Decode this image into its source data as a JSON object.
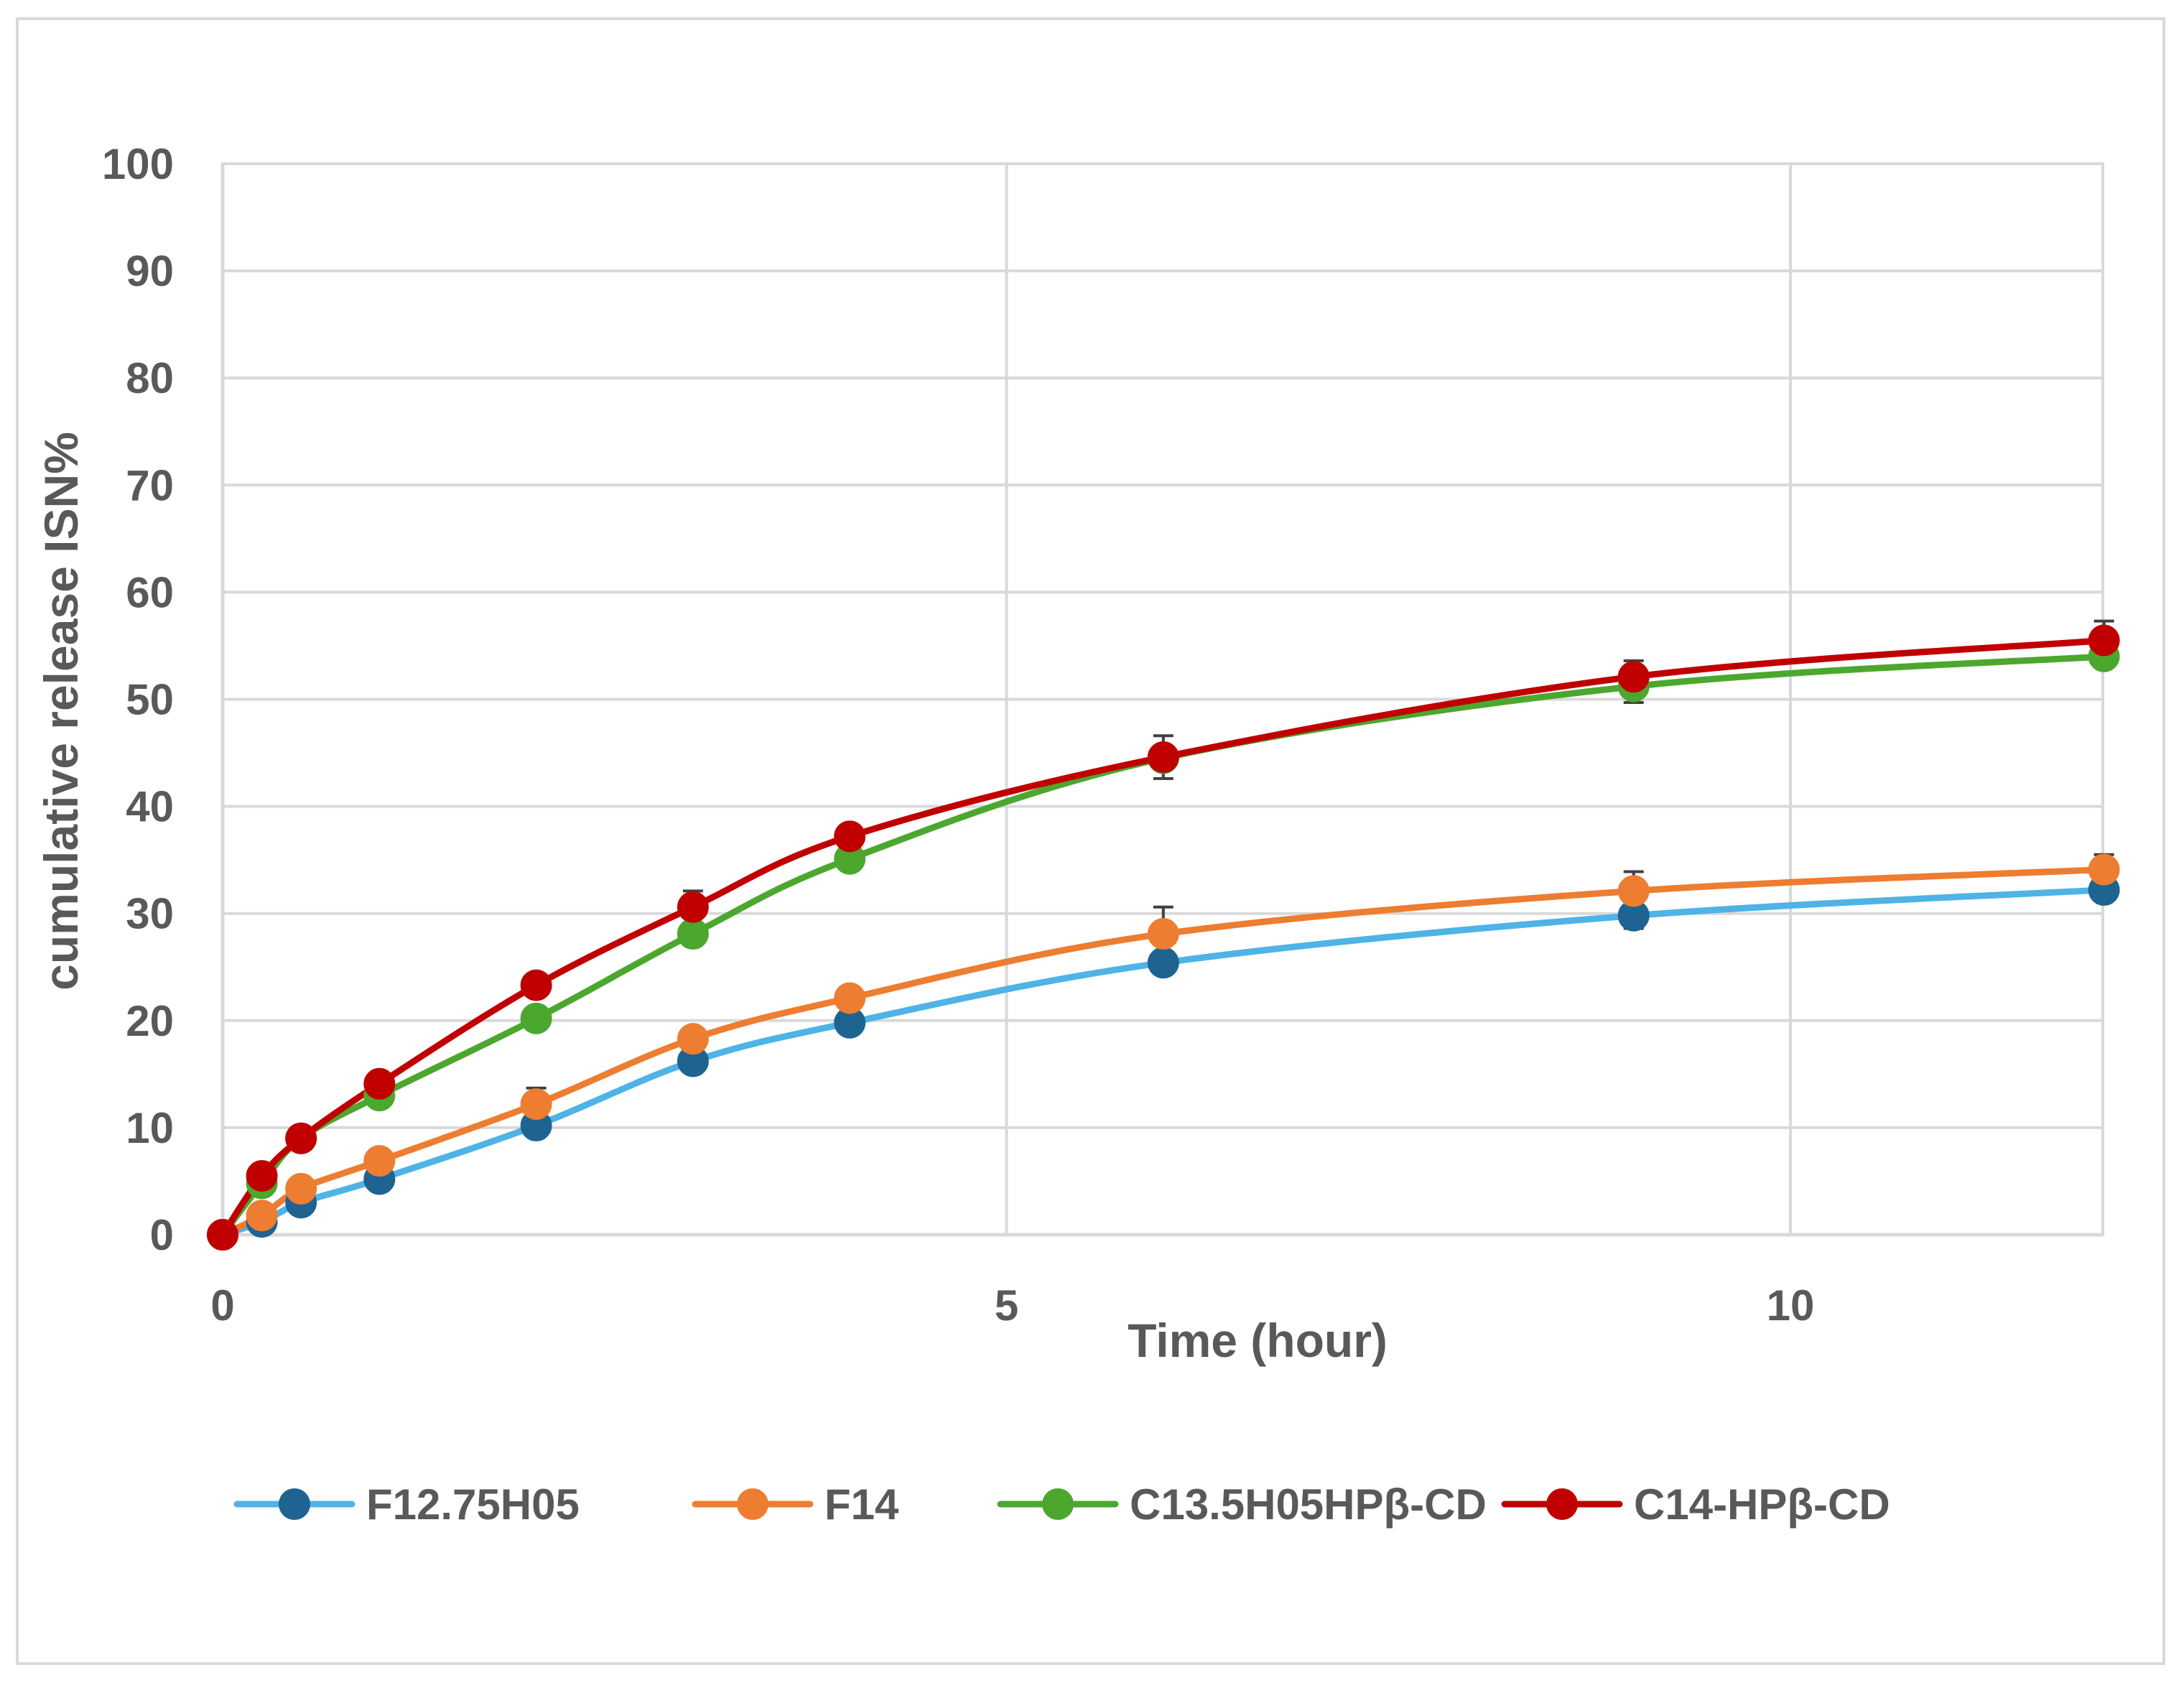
{
  "chart_data": {
    "type": "line",
    "title": "",
    "xlabel": "Time (hour)",
    "ylabel": "cumulative release ISN%",
    "xlim": [
      0,
      12
    ],
    "ylim": [
      0,
      100
    ],
    "xticks": [
      0,
      5,
      10
    ],
    "yticks": [
      0,
      10,
      20,
      30,
      40,
      50,
      60,
      70,
      80,
      90,
      100
    ],
    "grid": true,
    "legend_position": "bottom",
    "x": [
      0,
      0.25,
      0.5,
      1,
      2,
      3,
      4,
      6,
      9,
      12
    ],
    "series": [
      {
        "name": "F12.75H05",
        "line_color": "#4fb3e6",
        "marker_color": "#1f6391",
        "values": [
          0,
          1.2,
          3.0,
          5.2,
          10.2,
          16.2,
          19.8,
          25.4,
          29.8,
          32.2
        ],
        "errors": [
          0,
          0,
          0,
          0,
          0,
          0,
          0,
          0,
          1.2,
          0
        ]
      },
      {
        "name": "F14",
        "line_color": "#ed7d31",
        "marker_color": "#ed7d31",
        "values": [
          0,
          1.8,
          4.3,
          6.9,
          12.2,
          18.3,
          22.1,
          28.1,
          32.1,
          34.1
        ],
        "errors": [
          0,
          0,
          0,
          0,
          1.5,
          0,
          1.0,
          2.5,
          1.8,
          1.4
        ]
      },
      {
        "name": "C13.5H05HPβ-CD",
        "line_color": "#4ca72f",
        "marker_color": "#4ca72f",
        "values": [
          0,
          4.8,
          9.0,
          13.0,
          20.2,
          28.1,
          35.1,
          44.5,
          51.2,
          54.0
        ],
        "errors": [
          0,
          0,
          0,
          0,
          0,
          0,
          0,
          0,
          1.5,
          0
        ]
      },
      {
        "name": "C14-HPβ-CD",
        "line_color": "#c00000",
        "marker_color": "#c00000",
        "values": [
          0,
          5.5,
          9.0,
          14.1,
          23.3,
          30.6,
          37.2,
          44.6,
          52.1,
          55.5
        ],
        "errors": [
          0,
          0,
          0,
          0,
          0,
          1.5,
          0.8,
          2.0,
          1.5,
          1.8
        ]
      }
    ]
  }
}
